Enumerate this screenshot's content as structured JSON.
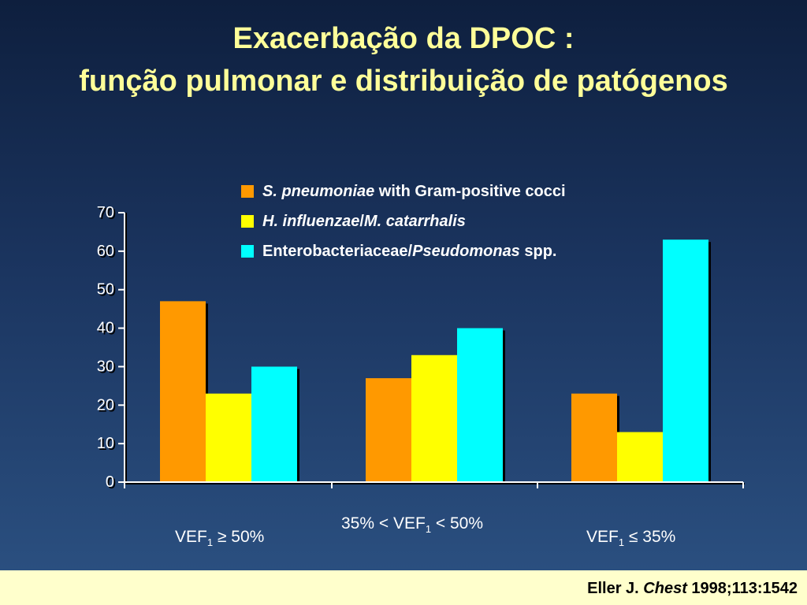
{
  "title": {
    "line1": "Exacerbação da DPOC :",
    "line2": "função pulmonar e distribuição de patógenos"
  },
  "legend": [
    {
      "italic": "S. pneumoniae",
      "rest": " with Gram-positive cocci",
      "color": "#ff9900"
    },
    {
      "italic": "H. influenzae",
      "rest": "/",
      "italic2": "M. catarrhalis",
      "color": "#ffff00"
    },
    {
      "plain": "Enterobacteriaceae/",
      "italic": "Pseudomonas",
      "rest": " spp.",
      "color": "#00ffff"
    }
  ],
  "category_labels": [
    {
      "pre": "VEF",
      "sub": "1",
      "post": " ≥ 50%"
    },
    {
      "pre": "35%  < VEF",
      "sub": "1",
      "post": "  < 50%"
    },
    {
      "pre": "VEF",
      "sub": "1",
      "post": " ≤ 35%"
    }
  ],
  "chart_data": {
    "type": "bar",
    "categories": [
      "VEF1 ≥ 50%",
      "35% < VEF1 < 50%",
      "VEF1 ≤ 35%"
    ],
    "series": [
      {
        "name": "S. pneumoniae with Gram-positive cocci",
        "values": [
          47,
          27,
          23
        ],
        "color": "#ff9900"
      },
      {
        "name": "H. influenzae/M. catarrhalis",
        "values": [
          23,
          33,
          13
        ],
        "color": "#ffff00"
      },
      {
        "name": "Enterobacteriaceae/Pseudomonas spp.",
        "values": [
          30,
          40,
          63
        ],
        "color": "#00ffff"
      }
    ],
    "ylim": [
      0,
      70
    ],
    "yticks": [
      "0",
      "10",
      "20",
      "30",
      "40",
      "50",
      "60",
      "70"
    ]
  },
  "citation": {
    "author": "Eller J. ",
    "journal": "Chest",
    "ref": " 1998;113:1542"
  }
}
